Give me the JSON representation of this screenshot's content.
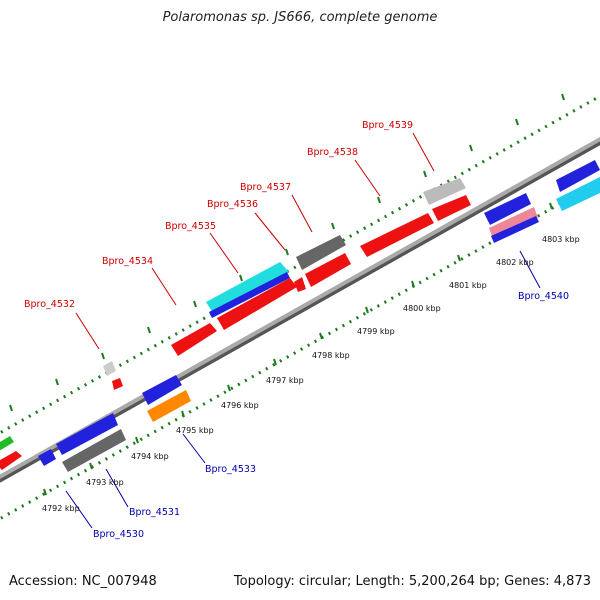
{
  "title": "Polaromonas sp. JS666, complete genome",
  "footer": {
    "accession": "Accession: NC_007948",
    "summary": "Topology: circular; Length: 5,200,264 bp; Genes: 4,873"
  },
  "colors": {
    "forward_label": "#cc0000",
    "reverse_label": "#0000aa",
    "backbone": "#999999",
    "ruler_dots": "#1e7a1e"
  },
  "ruler_labels": [
    "4792 kbp",
    "4793 kbp",
    "4794 kbp",
    "4795 kbp",
    "4796 kbp",
    "4797 kbp",
    "4798 kbp",
    "4799 kbp",
    "4800 kbp",
    "4801 kbp",
    "4802 kbp",
    "4803 kbp"
  ],
  "gene_labels": {
    "forward": [
      "Bpro_4532",
      "Bpro_4534",
      "Bpro_4535",
      "Bpro_4536",
      "Bpro_4537",
      "Bpro_4538",
      "Bpro_4539"
    ],
    "reverse": [
      "Bpro_4530",
      "Bpro_4531",
      "Bpro_4533",
      "Bpro_4540"
    ]
  }
}
